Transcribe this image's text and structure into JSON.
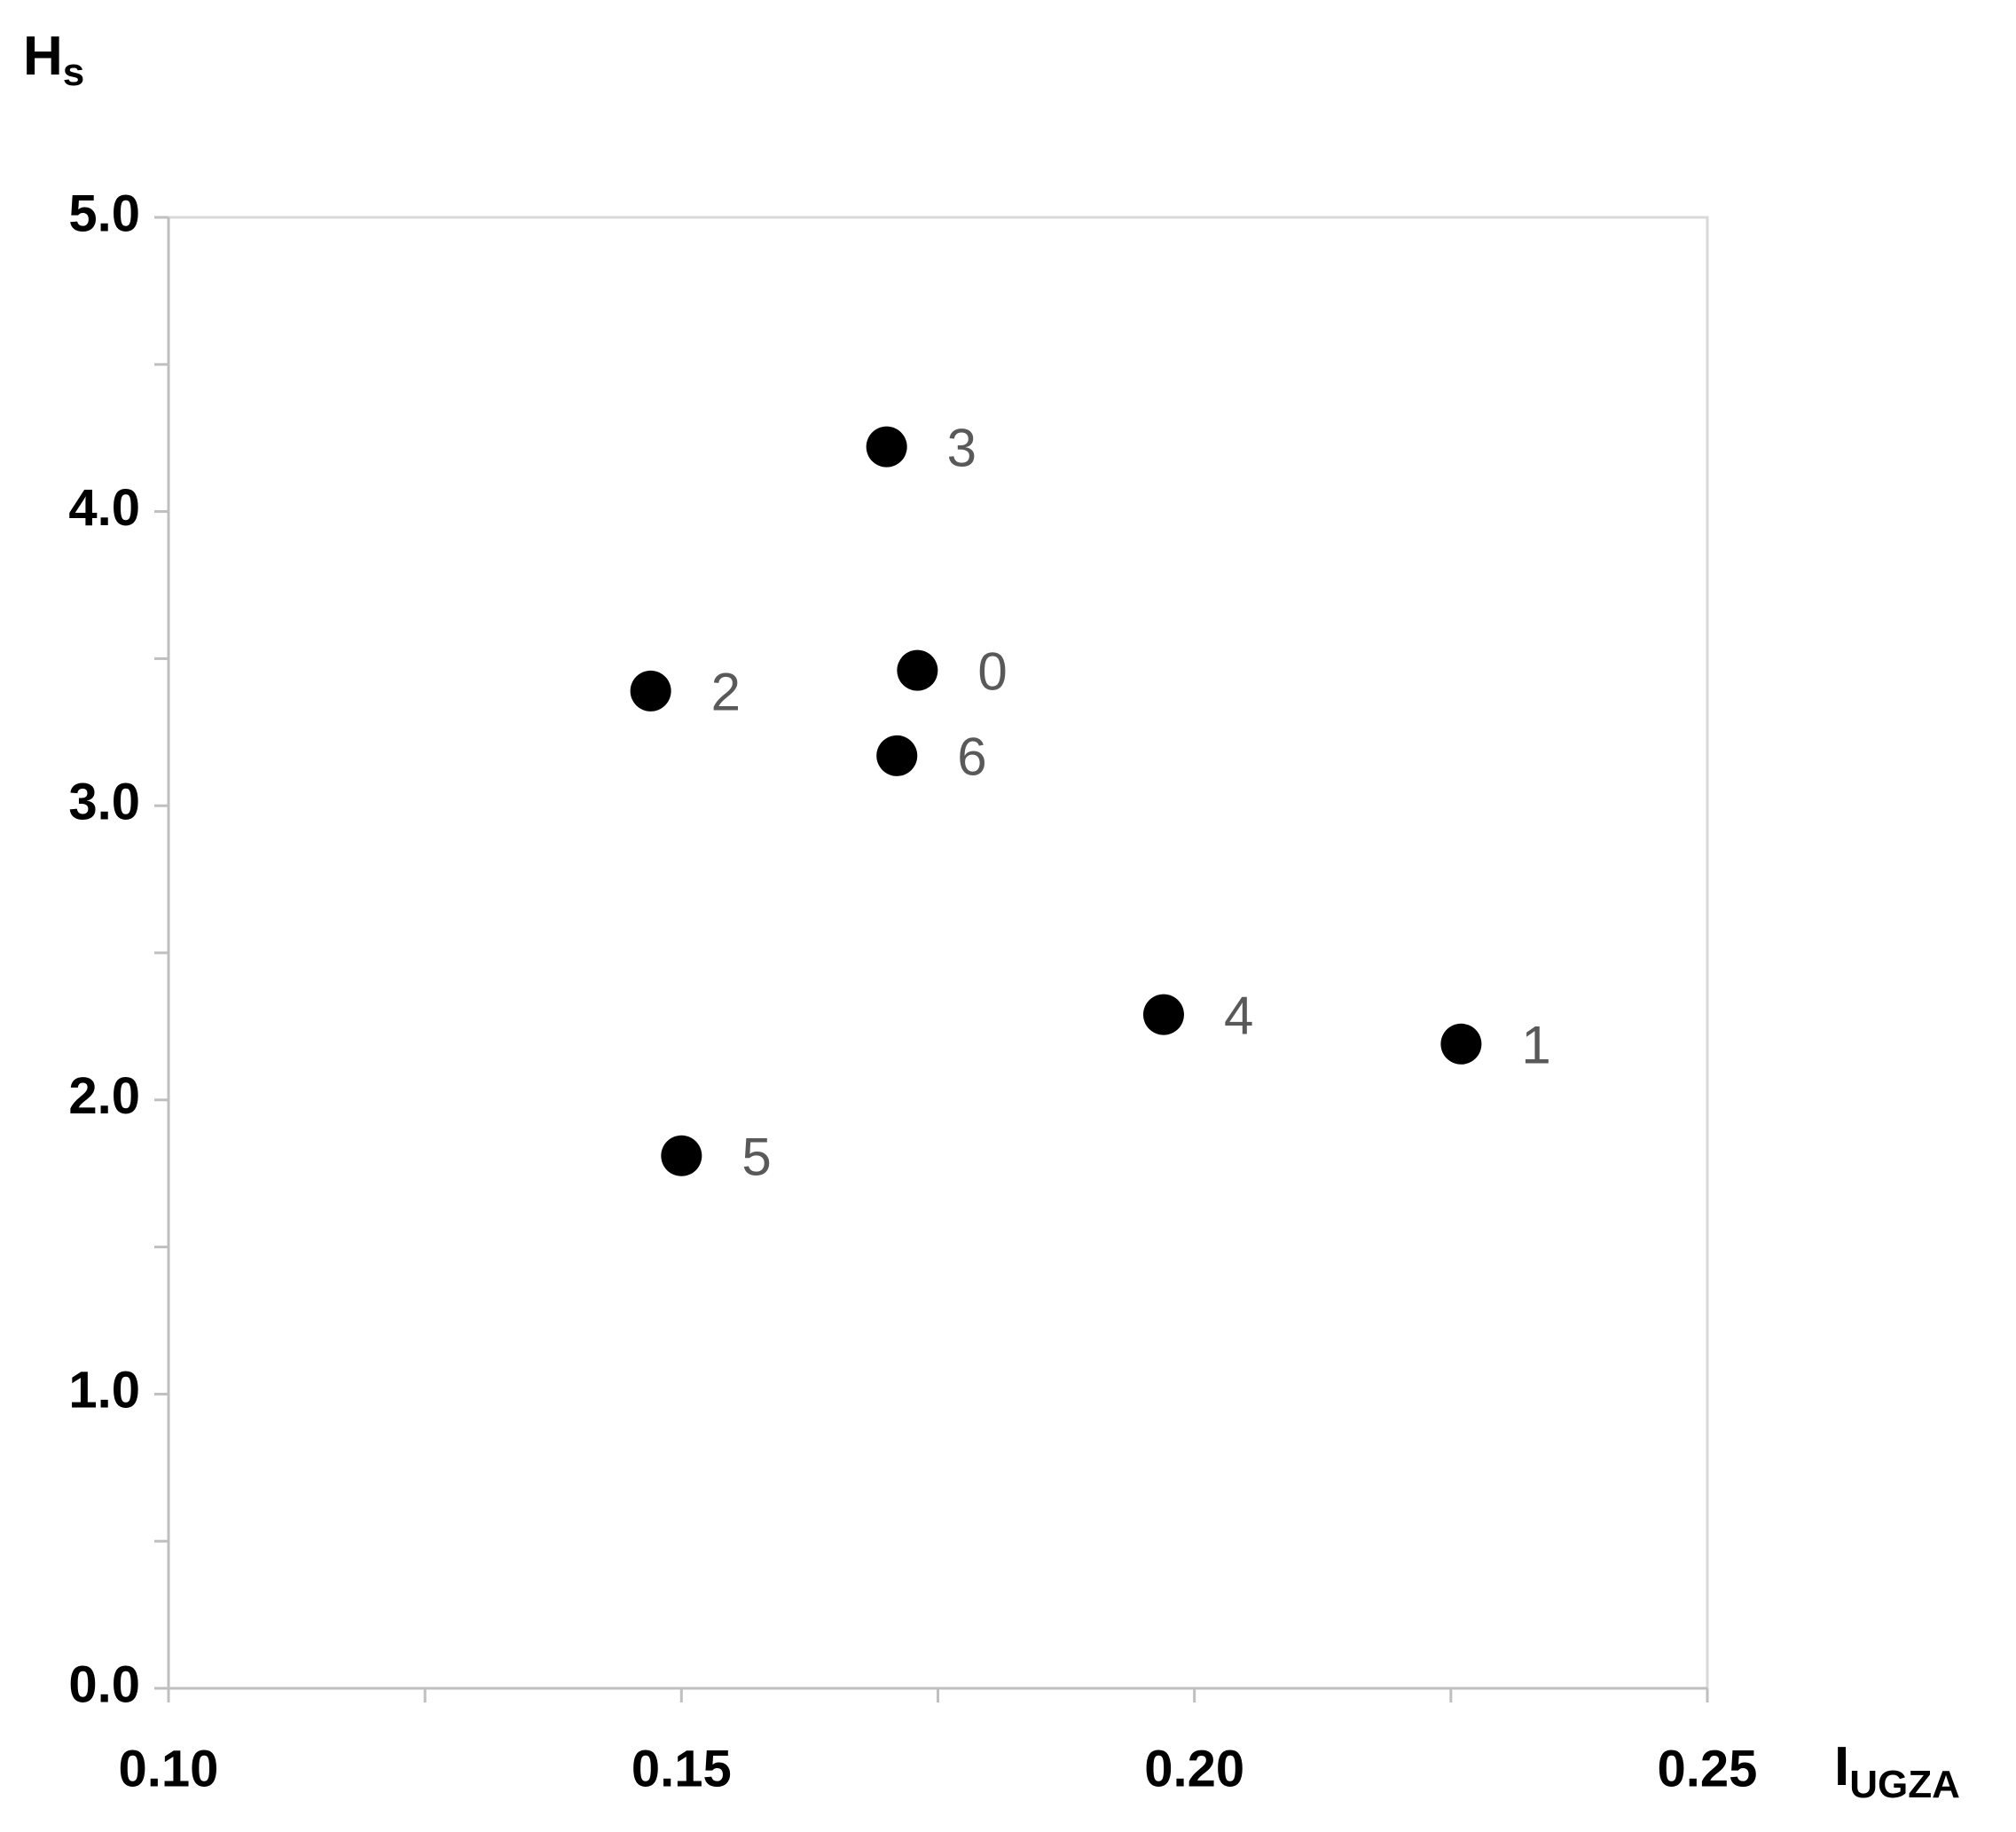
{
  "chart_data": {
    "type": "scatter",
    "ylabel": {
      "text": "H",
      "sub": "s"
    },
    "xlabel": {
      "text": "I",
      "sub": "UGZA"
    },
    "series": [
      {
        "color": "#000000",
        "x": [
          0.173,
          0.226,
          0.147,
          0.17,
          0.197,
          0.15,
          0.171
        ],
        "values": [
          3.46,
          2.19,
          3.39,
          4.22,
          2.29,
          1.81,
          3.17
        ],
        "labels": [
          "0",
          "1",
          "2",
          "3",
          "4",
          "5",
          "6"
        ]
      }
    ],
    "xlim": [
      0.1,
      0.25
    ],
    "xticks": [
      {
        "value": 0.1,
        "label": "0.10"
      },
      {
        "value": 0.15,
        "label": "0.15"
      },
      {
        "value": 0.2,
        "label": "0.20"
      },
      {
        "value": 0.25,
        "label": "0.25"
      }
    ],
    "xminorticks": [
      0.125,
      0.175,
      0.225
    ],
    "ylim": [
      0,
      5
    ],
    "yticks": [
      {
        "value": 0,
        "label": "0.0"
      },
      {
        "value": 1,
        "label": "1.0"
      },
      {
        "value": 2,
        "label": "2.0"
      },
      {
        "value": 3,
        "label": "3.0"
      },
      {
        "value": 4,
        "label": "4.0"
      },
      {
        "value": 5,
        "label": "5.0"
      }
    ],
    "yminorticks": [
      0.5,
      1.5,
      2.5,
      3.5,
      4.5
    ],
    "grid": false
  }
}
